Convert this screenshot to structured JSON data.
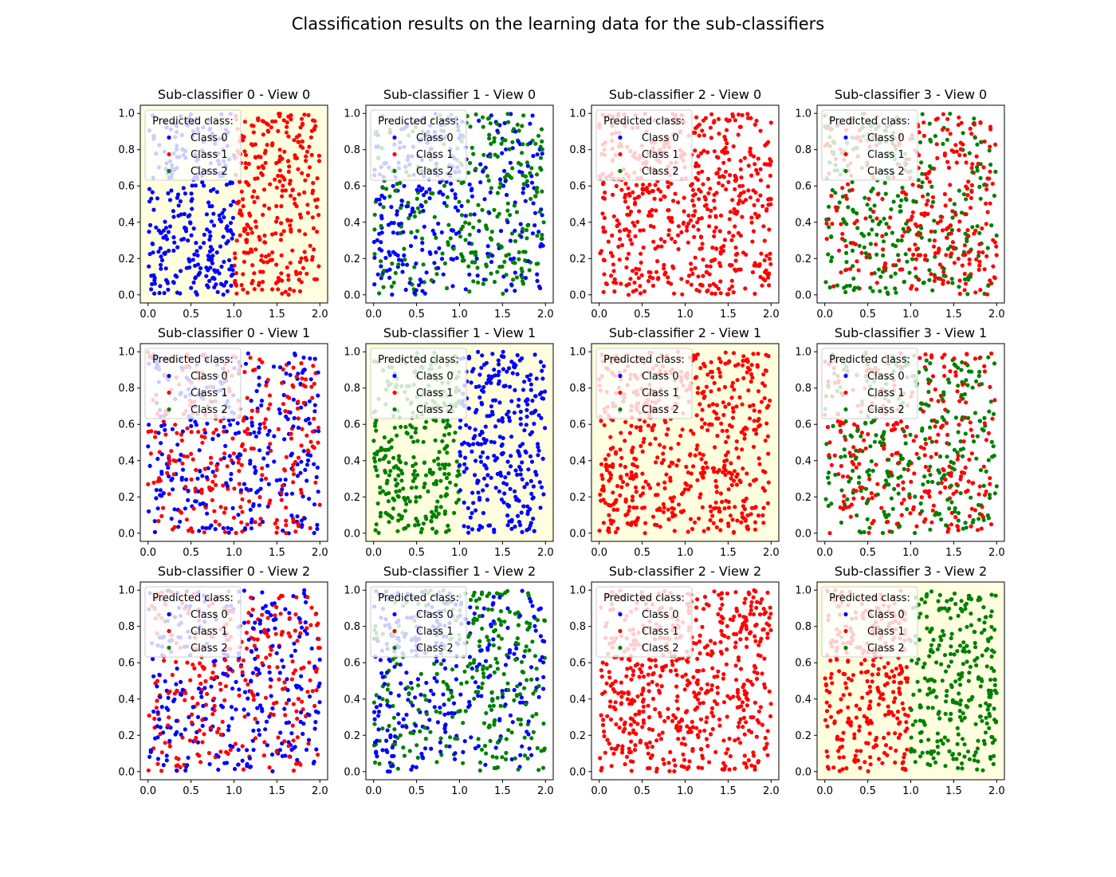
{
  "figure": {
    "title": "Classification results on the learning data for the sub-classifiers",
    "legend_title": "Predicted class:",
    "classes": [
      "Class 0",
      "Class 1",
      "Class 2"
    ],
    "class_colors": [
      "#0000ff",
      "#ff0000",
      "#008000"
    ],
    "highlight_color": "#ffffe0"
  },
  "chart_data": [
    {
      "type": "scatter",
      "title": "Sub-classifier 0 - View 0",
      "row": 0,
      "col": 0,
      "highlight": true,
      "pattern": "split",
      "left": 0,
      "right": 1,
      "xlim": [
        0,
        2
      ],
      "ylim": [
        0,
        1
      ],
      "xticks": [
        "0.0",
        "0.5",
        "1.0",
        "1.5",
        "2.0"
      ],
      "yticks": [
        "0.0",
        "0.2",
        "0.4",
        "0.6",
        "0.8",
        "1.0"
      ],
      "legend": [
        "Class 0",
        "Class 1",
        "Class 2"
      ],
      "legend_position": "upper-left",
      "n_points": 600
    },
    {
      "type": "scatter",
      "title": "Sub-classifier 1 - View 0",
      "row": 0,
      "col": 1,
      "highlight": false,
      "pattern": "split_noisy",
      "left": 0,
      "right": 2,
      "xlim": [
        0,
        2
      ],
      "ylim": [
        0,
        1
      ],
      "xticks": [
        "0.0",
        "0.5",
        "1.0",
        "1.5",
        "2.0"
      ],
      "yticks": [
        "0.0",
        "0.2",
        "0.4",
        "0.6",
        "0.8",
        "1.0"
      ],
      "legend": [
        "Class 0",
        "Class 1",
        "Class 2"
      ],
      "legend_position": "upper-left",
      "n_points": 600
    },
    {
      "type": "scatter",
      "title": "Sub-classifier 2 - View 0",
      "row": 0,
      "col": 2,
      "highlight": false,
      "pattern": "single",
      "left": 1,
      "right": 1,
      "xlim": [
        0,
        2
      ],
      "ylim": [
        0,
        1
      ],
      "xticks": [
        "0.0",
        "0.5",
        "1.0",
        "1.5",
        "2.0"
      ],
      "yticks": [
        "0.0",
        "0.2",
        "0.4",
        "0.6",
        "0.8",
        "1.0"
      ],
      "legend": [
        "Class 0",
        "Class 1",
        "Class 2"
      ],
      "legend_position": "upper-left",
      "n_points": 600
    },
    {
      "type": "scatter",
      "title": "Sub-classifier 3 - View 0",
      "row": 0,
      "col": 3,
      "highlight": false,
      "pattern": "split_noisy",
      "left": 2,
      "right": 1,
      "xlim": [
        0,
        2
      ],
      "ylim": [
        0,
        1
      ],
      "xticks": [
        "0.0",
        "0.5",
        "1.0",
        "1.5",
        "2.0"
      ],
      "yticks": [
        "0.0",
        "0.2",
        "0.4",
        "0.6",
        "0.8",
        "1.0"
      ],
      "legend": [
        "Class 0",
        "Class 1",
        "Class 2"
      ],
      "legend_position": "upper-left",
      "n_points": 600
    },
    {
      "type": "scatter",
      "title": "Sub-classifier 0 - View 1",
      "row": 1,
      "col": 0,
      "highlight": false,
      "pattern": "mixed",
      "left": 1,
      "right": 0,
      "xlim": [
        0,
        2
      ],
      "ylim": [
        0,
        1
      ],
      "xticks": [
        "0.0",
        "0.5",
        "1.0",
        "1.5",
        "2.0"
      ],
      "yticks": [
        "0.0",
        "0.2",
        "0.4",
        "0.6",
        "0.8",
        "1.0"
      ],
      "legend": [
        "Class 0",
        "Class 1",
        "Class 2"
      ],
      "legend_position": "upper-left",
      "n_points": 600
    },
    {
      "type": "scatter",
      "title": "Sub-classifier 1 - View 1",
      "row": 1,
      "col": 1,
      "highlight": true,
      "pattern": "split",
      "left": 2,
      "right": 0,
      "xlim": [
        0,
        2
      ],
      "ylim": [
        0,
        1
      ],
      "xticks": [
        "0.0",
        "0.5",
        "1.0",
        "1.5",
        "2.0"
      ],
      "yticks": [
        "0.0",
        "0.2",
        "0.4",
        "0.6",
        "0.8",
        "1.0"
      ],
      "legend": [
        "Class 0",
        "Class 1",
        "Class 2"
      ],
      "legend_position": "upper-left",
      "n_points": 600
    },
    {
      "type": "scatter",
      "title": "Sub-classifier 2 - View 1",
      "row": 1,
      "col": 2,
      "highlight": true,
      "pattern": "single",
      "left": 1,
      "right": 1,
      "xlim": [
        0,
        2
      ],
      "ylim": [
        0,
        1
      ],
      "xticks": [
        "0.0",
        "0.5",
        "1.0",
        "1.5",
        "2.0"
      ],
      "yticks": [
        "0.0",
        "0.2",
        "0.4",
        "0.6",
        "0.8",
        "1.0"
      ],
      "legend": [
        "Class 0",
        "Class 1",
        "Class 2"
      ],
      "legend_position": "upper-left",
      "n_points": 600
    },
    {
      "type": "scatter",
      "title": "Sub-classifier 3 - View 1",
      "row": 1,
      "col": 3,
      "highlight": false,
      "pattern": "mixed",
      "left": 2,
      "right": 1,
      "xlim": [
        0,
        2
      ],
      "ylim": [
        0,
        1
      ],
      "xticks": [
        "0.0",
        "0.5",
        "1.0",
        "1.5",
        "2.0"
      ],
      "yticks": [
        "0.0",
        "0.2",
        "0.4",
        "0.6",
        "0.8",
        "1.0"
      ],
      "legend": [
        "Class 0",
        "Class 1",
        "Class 2"
      ],
      "legend_position": "upper-left",
      "n_points": 600
    },
    {
      "type": "scatter",
      "title": "Sub-classifier 0 - View 2",
      "row": 2,
      "col": 0,
      "highlight": false,
      "pattern": "mixed",
      "left": 1,
      "right": 0,
      "xlim": [
        0,
        2
      ],
      "ylim": [
        0,
        1
      ],
      "xticks": [
        "0.0",
        "0.5",
        "1.0",
        "1.5",
        "2.0"
      ],
      "yticks": [
        "0.0",
        "0.2",
        "0.4",
        "0.6",
        "0.8",
        "1.0"
      ],
      "legend": [
        "Class 0",
        "Class 1",
        "Class 2"
      ],
      "legend_position": "upper-left",
      "n_points": 600
    },
    {
      "type": "scatter",
      "title": "Sub-classifier 1 - View 2",
      "row": 2,
      "col": 1,
      "highlight": false,
      "pattern": "split_noisy",
      "left": 0,
      "right": 2,
      "xlim": [
        0,
        2
      ],
      "ylim": [
        0,
        1
      ],
      "xticks": [
        "0.0",
        "0.5",
        "1.0",
        "1.5",
        "2.0"
      ],
      "yticks": [
        "0.0",
        "0.2",
        "0.4",
        "0.6",
        "0.8",
        "1.0"
      ],
      "legend": [
        "Class 0",
        "Class 1",
        "Class 2"
      ],
      "legend_position": "upper-left",
      "n_points": 600
    },
    {
      "type": "scatter",
      "title": "Sub-classifier 2 - View 2",
      "row": 2,
      "col": 2,
      "highlight": false,
      "pattern": "single",
      "left": 1,
      "right": 1,
      "xlim": [
        0,
        2
      ],
      "ylim": [
        0,
        1
      ],
      "xticks": [
        "0.0",
        "0.5",
        "1.0",
        "1.5",
        "2.0"
      ],
      "yticks": [
        "0.0",
        "0.2",
        "0.4",
        "0.6",
        "0.8",
        "1.0"
      ],
      "legend": [
        "Class 0",
        "Class 1",
        "Class 2"
      ],
      "legend_position": "upper-left",
      "n_points": 600
    },
    {
      "type": "scatter",
      "title": "Sub-classifier 3 - View 2",
      "row": 2,
      "col": 3,
      "highlight": true,
      "pattern": "split",
      "left": 1,
      "right": 2,
      "xlim": [
        0,
        2
      ],
      "ylim": [
        0,
        1
      ],
      "xticks": [
        "0.0",
        "0.5",
        "1.0",
        "1.5",
        "2.0"
      ],
      "yticks": [
        "0.0",
        "0.2",
        "0.4",
        "0.6",
        "0.8",
        "1.0"
      ],
      "legend": [
        "Class 0",
        "Class 1",
        "Class 2"
      ],
      "legend_position": "upper-left",
      "n_points": 600
    }
  ]
}
